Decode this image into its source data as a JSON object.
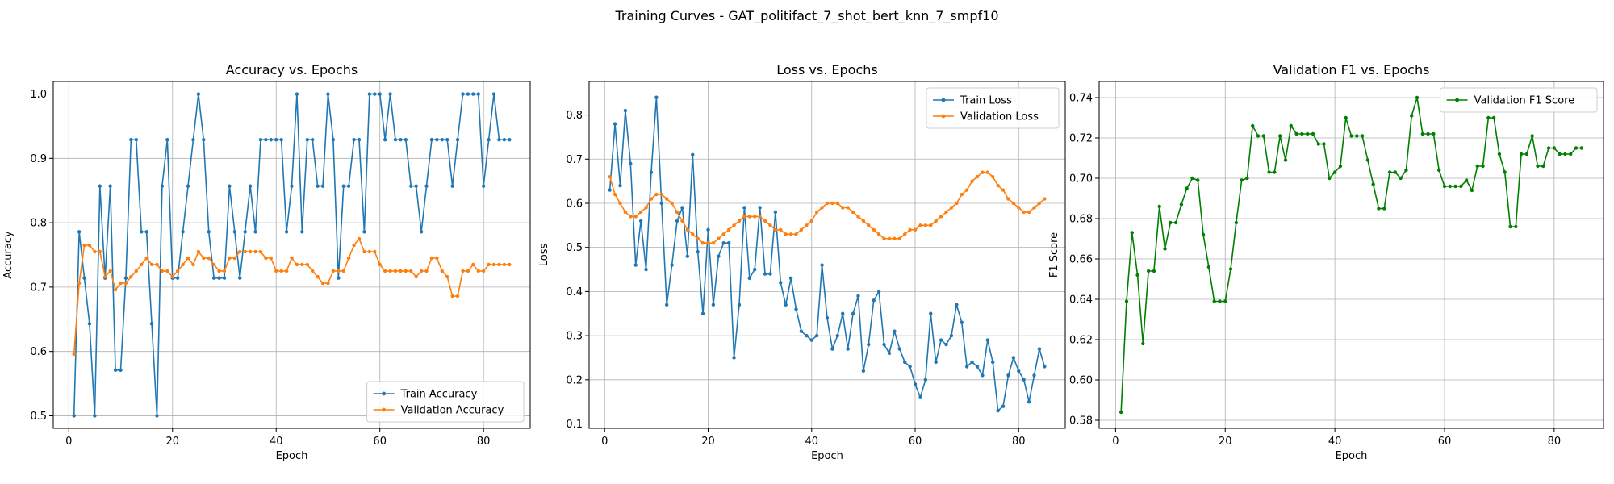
{
  "figure_title": "Training Curves - GAT_politifact_7_shot_bert_knn_7_smpf10",
  "chart_data": [
    {
      "type": "line",
      "title": "Accuracy vs. Epochs",
      "xlabel": "Epoch",
      "ylabel": "Accuracy",
      "xlim": [
        -3,
        89
      ],
      "ylim": [
        0.4805,
        1.0195
      ],
      "xticks": [
        0,
        20,
        40,
        60,
        80
      ],
      "yticks": [
        0.5,
        0.6,
        0.7,
        0.8,
        0.9,
        1.0
      ],
      "ytick_decimals": 1,
      "grid": true,
      "legend_position": "lower-right",
      "x": [
        1,
        2,
        3,
        4,
        5,
        6,
        7,
        8,
        9,
        10,
        11,
        12,
        13,
        14,
        15,
        16,
        17,
        18,
        19,
        20,
        21,
        22,
        23,
        24,
        25,
        26,
        27,
        28,
        29,
        30,
        31,
        32,
        33,
        34,
        35,
        36,
        37,
        38,
        39,
        40,
        41,
        42,
        43,
        44,
        45,
        46,
        47,
        48,
        49,
        50,
        51,
        52,
        53,
        54,
        55,
        56,
        57,
        58,
        59,
        60,
        61,
        62,
        63,
        64,
        65,
        66,
        67,
        68,
        69,
        70,
        71,
        72,
        73,
        74,
        75,
        76,
        77,
        78,
        79,
        80,
        81,
        82,
        83,
        84,
        85
      ],
      "series": [
        {
          "name": "Train Accuracy",
          "color": "#1f77b4",
          "values": [
            0.5,
            0.786,
            0.714,
            0.643,
            0.5,
            0.857,
            0.714,
            0.857,
            0.571,
            0.571,
            0.714,
            0.929,
            0.929,
            0.786,
            0.786,
            0.643,
            0.5,
            0.857,
            0.929,
            0.714,
            0.714,
            0.786,
            0.857,
            0.929,
            1.0,
            0.929,
            0.786,
            0.714,
            0.714,
            0.714,
            0.857,
            0.786,
            0.714,
            0.786,
            0.857,
            0.786,
            0.929,
            0.929,
            0.929,
            0.929,
            0.929,
            0.786,
            0.857,
            1.0,
            0.786,
            0.929,
            0.929,
            0.857,
            0.857,
            1.0,
            0.929,
            0.714,
            0.857,
            0.857,
            0.929,
            0.929,
            0.786,
            1.0,
            1.0,
            1.0,
            0.929,
            1.0,
            0.929,
            0.929,
            0.929,
            0.857,
            0.857,
            0.786,
            0.857,
            0.929,
            0.929,
            0.929,
            0.929,
            0.857,
            0.929,
            1.0,
            1.0,
            1.0,
            1.0,
            0.857,
            0.929,
            1.0,
            0.929,
            0.929,
            0.929
          ]
        },
        {
          "name": "Validation Accuracy",
          "color": "#ff7f0e",
          "values": [
            0.596,
            0.706,
            0.765,
            0.765,
            0.755,
            0.755,
            0.716,
            0.725,
            0.696,
            0.706,
            0.706,
            0.716,
            0.725,
            0.735,
            0.745,
            0.735,
            0.735,
            0.725,
            0.725,
            0.716,
            0.725,
            0.735,
            0.745,
            0.735,
            0.755,
            0.745,
            0.745,
            0.735,
            0.725,
            0.725,
            0.745,
            0.745,
            0.755,
            0.755,
            0.755,
            0.755,
            0.755,
            0.745,
            0.745,
            0.725,
            0.725,
            0.725,
            0.745,
            0.735,
            0.735,
            0.735,
            0.725,
            0.716,
            0.706,
            0.706,
            0.725,
            0.725,
            0.725,
            0.745,
            0.765,
            0.775,
            0.755,
            0.755,
            0.755,
            0.735,
            0.725,
            0.725,
            0.725,
            0.725,
            0.725,
            0.725,
            0.716,
            0.725,
            0.725,
            0.745,
            0.745,
            0.725,
            0.716,
            0.686,
            0.686,
            0.725,
            0.725,
            0.735,
            0.725,
            0.725,
            0.735,
            0.735,
            0.735,
            0.735,
            0.735
          ]
        }
      ]
    },
    {
      "type": "line",
      "title": "Loss vs. Epochs",
      "xlabel": "Epoch",
      "ylabel": "Loss",
      "xlim": [
        -3,
        89
      ],
      "ylim": [
        0.09,
        0.876
      ],
      "xticks": [
        0,
        20,
        40,
        60,
        80
      ],
      "yticks": [
        0.1,
        0.2,
        0.3,
        0.4,
        0.5,
        0.6,
        0.7,
        0.8
      ],
      "ytick_decimals": 1,
      "grid": true,
      "legend_position": "top-right",
      "x": [
        1,
        2,
        3,
        4,
        5,
        6,
        7,
        8,
        9,
        10,
        11,
        12,
        13,
        14,
        15,
        16,
        17,
        18,
        19,
        20,
        21,
        22,
        23,
        24,
        25,
        26,
        27,
        28,
        29,
        30,
        31,
        32,
        33,
        34,
        35,
        36,
        37,
        38,
        39,
        40,
        41,
        42,
        43,
        44,
        45,
        46,
        47,
        48,
        49,
        50,
        51,
        52,
        53,
        54,
        55,
        56,
        57,
        58,
        59,
        60,
        61,
        62,
        63,
        64,
        65,
        66,
        67,
        68,
        69,
        70,
        71,
        72,
        73,
        74,
        75,
        76,
        77,
        78,
        79,
        80,
        81,
        82,
        83,
        84,
        85
      ],
      "series": [
        {
          "name": "Train Loss",
          "color": "#1f77b4",
          "values": [
            0.63,
            0.78,
            0.64,
            0.81,
            0.69,
            0.46,
            0.56,
            0.45,
            0.67,
            0.84,
            0.6,
            0.37,
            0.46,
            0.56,
            0.59,
            0.48,
            0.71,
            0.49,
            0.35,
            0.54,
            0.37,
            0.48,
            0.51,
            0.51,
            0.25,
            0.37,
            0.59,
            0.43,
            0.45,
            0.59,
            0.44,
            0.44,
            0.58,
            0.42,
            0.37,
            0.43,
            0.36,
            0.31,
            0.3,
            0.29,
            0.3,
            0.46,
            0.34,
            0.27,
            0.3,
            0.35,
            0.27,
            0.35,
            0.39,
            0.22,
            0.28,
            0.38,
            0.4,
            0.28,
            0.26,
            0.31,
            0.27,
            0.24,
            0.23,
            0.19,
            0.16,
            0.2,
            0.35,
            0.24,
            0.29,
            0.28,
            0.3,
            0.37,
            0.33,
            0.23,
            0.24,
            0.23,
            0.21,
            0.29,
            0.24,
            0.13,
            0.14,
            0.21,
            0.25,
            0.22,
            0.2,
            0.15,
            0.21,
            0.27,
            0.23
          ]
        },
        {
          "name": "Validation Loss",
          "color": "#ff7f0e",
          "values": [
            0.66,
            0.62,
            0.6,
            0.58,
            0.57,
            0.57,
            0.58,
            0.59,
            0.61,
            0.62,
            0.62,
            0.61,
            0.6,
            0.58,
            0.56,
            0.54,
            0.53,
            0.52,
            0.51,
            0.51,
            0.51,
            0.52,
            0.53,
            0.54,
            0.55,
            0.56,
            0.57,
            0.57,
            0.57,
            0.57,
            0.56,
            0.55,
            0.54,
            0.54,
            0.53,
            0.53,
            0.53,
            0.54,
            0.55,
            0.56,
            0.58,
            0.59,
            0.6,
            0.6,
            0.6,
            0.59,
            0.59,
            0.58,
            0.57,
            0.56,
            0.55,
            0.54,
            0.53,
            0.52,
            0.52,
            0.52,
            0.52,
            0.53,
            0.54,
            0.54,
            0.55,
            0.55,
            0.55,
            0.56,
            0.57,
            0.58,
            0.59,
            0.6,
            0.62,
            0.63,
            0.65,
            0.66,
            0.67,
            0.67,
            0.66,
            0.64,
            0.63,
            0.61,
            0.6,
            0.59,
            0.58,
            0.58,
            0.59,
            0.6,
            0.61
          ]
        }
      ]
    },
    {
      "type": "line",
      "title": "Validation F1 vs. Epochs",
      "xlabel": "Epoch",
      "ylabel": "F1 Score",
      "xlim": [
        -3,
        89
      ],
      "ylim": [
        0.576,
        0.748
      ],
      "xticks": [
        0,
        20,
        40,
        60,
        80
      ],
      "yticks": [
        0.58,
        0.6,
        0.62,
        0.64,
        0.66,
        0.68,
        0.7,
        0.72,
        0.74
      ],
      "ytick_decimals": 2,
      "grid": true,
      "legend_position": "top-right",
      "x": [
        1,
        2,
        3,
        4,
        5,
        6,
        7,
        8,
        9,
        10,
        11,
        12,
        13,
        14,
        15,
        16,
        17,
        18,
        19,
        20,
        21,
        22,
        23,
        24,
        25,
        26,
        27,
        28,
        29,
        30,
        31,
        32,
        33,
        34,
        35,
        36,
        37,
        38,
        39,
        40,
        41,
        42,
        43,
        44,
        45,
        46,
        47,
        48,
        49,
        50,
        51,
        52,
        53,
        54,
        55,
        56,
        57,
        58,
        59,
        60,
        61,
        62,
        63,
        64,
        65,
        66,
        67,
        68,
        69,
        70,
        71,
        72,
        73,
        74,
        75,
        76,
        77,
        78,
        79,
        80,
        81,
        82,
        83,
        84,
        85
      ],
      "series": [
        {
          "name": "Validation F1 Score",
          "color": "#008000",
          "values": [
            0.584,
            0.639,
            0.673,
            0.652,
            0.618,
            0.654,
            0.654,
            0.686,
            0.665,
            0.678,
            0.678,
            0.687,
            0.695,
            0.7,
            0.699,
            0.672,
            0.656,
            0.639,
            0.639,
            0.639,
            0.655,
            0.678,
            0.699,
            0.7,
            0.726,
            0.721,
            0.721,
            0.703,
            0.703,
            0.721,
            0.709,
            0.726,
            0.722,
            0.722,
            0.722,
            0.722,
            0.717,
            0.717,
            0.7,
            0.703,
            0.706,
            0.73,
            0.721,
            0.721,
            0.721,
            0.709,
            0.697,
            0.685,
            0.685,
            0.703,
            0.703,
            0.7,
            0.704,
            0.731,
            0.74,
            0.722,
            0.722,
            0.722,
            0.704,
            0.696,
            0.696,
            0.696,
            0.696,
            0.699,
            0.694,
            0.706,
            0.706,
            0.73,
            0.73,
            0.712,
            0.703,
            0.676,
            0.676,
            0.712,
            0.712,
            0.721,
            0.706,
            0.706,
            0.715,
            0.715,
            0.712,
            0.712,
            0.712,
            0.715,
            0.715
          ]
        }
      ]
    }
  ]
}
